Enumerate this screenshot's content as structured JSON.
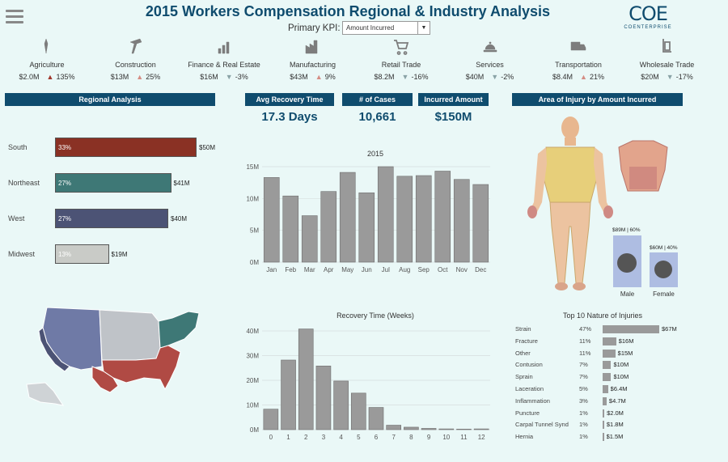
{
  "header": {
    "title": "2015 Workers Compensation Regional & Industry Analysis",
    "kpi_label": "Primary KPI:",
    "kpi_value": "Amount Incurred",
    "logo_mark": "COE",
    "logo_sub": "COENTERPRISE"
  },
  "industries": [
    {
      "name": "Agriculture",
      "value": "$2.0M",
      "change": "135%",
      "dir": "up",
      "icon": "wheat-icon"
    },
    {
      "name": "Construction",
      "value": "$13M",
      "change": "25%",
      "dir": "up",
      "icon": "hammer-icon"
    },
    {
      "name": "Finance & Real Estate",
      "value": "$16M",
      "change": "-3%",
      "dir": "down",
      "icon": "bar-chart-icon"
    },
    {
      "name": "Manufacturing",
      "value": "$43M",
      "change": "9%",
      "dir": "up",
      "icon": "factory-icon"
    },
    {
      "name": "Retail Trade",
      "value": "$8.2M",
      "change": "-16%",
      "dir": "down",
      "icon": "cart-icon"
    },
    {
      "name": "Services",
      "value": "$40M",
      "change": "-2%",
      "dir": "down",
      "icon": "service-bell-icon"
    },
    {
      "name": "Transportation",
      "value": "$8.4M",
      "change": "21%",
      "dir": "up",
      "icon": "truck-icon"
    },
    {
      "name": "Wholesale Trade",
      "value": "$20M",
      "change": "-17%",
      "dir": "down",
      "icon": "hand-truck-icon"
    }
  ],
  "sections": {
    "regional": "Regional Analysis",
    "recovery": "Avg Recovery Time",
    "cases": "# of Cases",
    "incurred": "Incurred Amount",
    "injury_area": "Area of Injury by Amount Incurred"
  },
  "metrics": {
    "recovery": "17.3 Days",
    "cases": "10,661",
    "incurred": "$150M"
  },
  "colors": {
    "header": "#0f4c6e",
    "south": "#8a3124",
    "northeast": "#3e7876",
    "west": "#4c5375",
    "midwest": "#c9cbc7",
    "bar": "#9a9a9a"
  },
  "gender": {
    "male_label": "Male",
    "female_label": "Female",
    "male_value": "$89M | 60%",
    "female_value": "$60M | 40%"
  },
  "chart_data": [
    {
      "type": "bar",
      "orientation": "horizontal",
      "categories": [
        "South",
        "Northeast",
        "West",
        "Midwest"
      ],
      "values": [
        50,
        41,
        40,
        19
      ],
      "value_labels": [
        "$50M",
        "$41M",
        "$40M",
        "$19M"
      ],
      "pct_labels": [
        "33%",
        "27%",
        "27%",
        "13%"
      ]
    },
    {
      "type": "bar",
      "title": "2015",
      "categories": [
        "Jan",
        "Feb",
        "Mar",
        "Apr",
        "May",
        "Jun",
        "Jul",
        "Aug",
        "Sep",
        "Oct",
        "Nov",
        "Dec"
      ],
      "values": [
        13.3,
        10.4,
        7.3,
        11.1,
        14.1,
        10.9,
        15.0,
        13.5,
        13.6,
        14.3,
        13.0,
        12.2
      ],
      "ylim": [
        0,
        15
      ],
      "yticks": [
        "0M",
        "5M",
        "10M",
        "15M"
      ],
      "ytick_values": [
        0,
        5,
        10,
        15
      ]
    },
    {
      "type": "bar",
      "title": "Recovery Time (Weeks)",
      "categories": [
        "0",
        "1",
        "2",
        "3",
        "4",
        "5",
        "6",
        "7",
        "8",
        "9",
        "10",
        "11",
        "12"
      ],
      "values": [
        8.3,
        28.2,
        40.8,
        25.8,
        19.7,
        14.8,
        9.0,
        1.8,
        1.0,
        0.5,
        0.3,
        0.2,
        0.3
      ],
      "ylim": [
        0,
        40
      ],
      "yticks": [
        "0M",
        "10M",
        "20M",
        "30M",
        "40M"
      ],
      "ytick_values": [
        0,
        10,
        20,
        30,
        40
      ]
    },
    {
      "type": "bar",
      "orientation": "horizontal",
      "title": "Top 10 Nature of Injuries",
      "categories": [
        "Strain",
        "Fracture",
        "Other",
        "Contusion",
        "Sprain",
        "Laceration",
        "Inflammation",
        "Puncture",
        "Carpal Tunnel Synd",
        "Hernia"
      ],
      "pcts": [
        "47%",
        "11%",
        "11%",
        "7%",
        "7%",
        "5%",
        "3%",
        "1%",
        "1%",
        "1%"
      ],
      "values": [
        67,
        16,
        15,
        10,
        10,
        6.4,
        4.7,
        2.0,
        1.8,
        1.5
      ],
      "value_labels": [
        "$67M",
        "$16M",
        "$15M",
        "$10M",
        "$10M",
        "$6.4M",
        "$4.7M",
        "$2.0M",
        "$1.8M",
        "$1.5M"
      ]
    }
  ]
}
